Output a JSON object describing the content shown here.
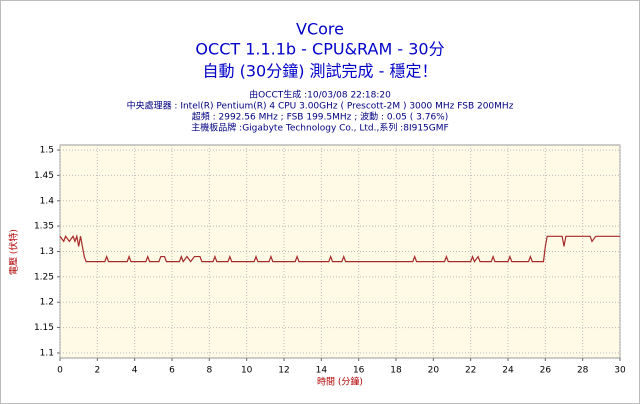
{
  "chart_data": {
    "type": "line",
    "title": "VCore",
    "subtitles": [
      "OCCT 1.1.1b - CPU&RAM - 30分",
      "自動 (30分鐘) 測試完成 - 穩定！"
    ],
    "info": [
      "由OCCT生成 :10/03/08 22:18:20",
      "中央處理器 : Intel(R) Pentium(R) 4 CPU 3.00GHz ( Prescott-2M ) 3000 MHz FSB 200MHz",
      "超頻 : 2992.56 MHz ; FSB 199.5MHz ; 波動 : 0.05 ( 3.76%)",
      "主機板品牌 :Gigabyte Technology Co., Ltd.,系列 :8I915GMF"
    ],
    "xlabel": "時間 (分鐘)",
    "ylabel": "電壓 (伏特)",
    "x": [
      0,
      0.2,
      0.3,
      0.5,
      0.7,
      0.8,
      0.9,
      1.0,
      1.1,
      1.3,
      1.4,
      2.4,
      2.5,
      2.6,
      3.6,
      3.7,
      3.8,
      4.6,
      4.7,
      4.8,
      5.3,
      5.4,
      5.6,
      5.7,
      6.4,
      6.5,
      6.6,
      6.8,
      7.0,
      7.2,
      7.5,
      7.6,
      8.2,
      8.3,
      8.4,
      9.0,
      9.1,
      9.2,
      10.4,
      10.5,
      10.6,
      11.2,
      11.3,
      11.4,
      12.6,
      12.7,
      12.8,
      14.4,
      14.5,
      14.6,
      15.1,
      15.2,
      15.3,
      18.9,
      19.0,
      19.1,
      20.6,
      20.7,
      20.8,
      22.0,
      22.1,
      22.2,
      22.4,
      22.5,
      23.1,
      23.2,
      23.3,
      24.0,
      24.1,
      24.2,
      25.1,
      25.2,
      25.3,
      25.9,
      26.0,
      26.1,
      26.9,
      27.0,
      27.1,
      28.4,
      28.5,
      28.7,
      30.0
    ],
    "values": [
      1.33,
      1.32,
      1.33,
      1.32,
      1.33,
      1.32,
      1.33,
      1.31,
      1.33,
      1.29,
      1.28,
      1.28,
      1.29,
      1.28,
      1.28,
      1.29,
      1.28,
      1.28,
      1.29,
      1.28,
      1.28,
      1.29,
      1.29,
      1.28,
      1.28,
      1.29,
      1.28,
      1.29,
      1.28,
      1.29,
      1.29,
      1.28,
      1.28,
      1.29,
      1.28,
      1.28,
      1.29,
      1.28,
      1.28,
      1.29,
      1.28,
      1.28,
      1.29,
      1.28,
      1.28,
      1.29,
      1.28,
      1.28,
      1.29,
      1.28,
      1.28,
      1.29,
      1.28,
      1.28,
      1.29,
      1.28,
      1.28,
      1.29,
      1.28,
      1.28,
      1.29,
      1.28,
      1.29,
      1.28,
      1.28,
      1.29,
      1.28,
      1.28,
      1.29,
      1.28,
      1.28,
      1.29,
      1.28,
      1.28,
      1.31,
      1.33,
      1.33,
      1.31,
      1.33,
      1.33,
      1.32,
      1.33,
      1.33
    ],
    "color": "#a52a2a",
    "xlim": [
      0,
      30
    ],
    "xticks": [
      0,
      2,
      4,
      6,
      8,
      10,
      12,
      14,
      16,
      18,
      20,
      22,
      24,
      26,
      28,
      30
    ],
    "ylim": [
      1.09,
      1.51
    ],
    "yticks": [
      1.1,
      1.15,
      1.2,
      1.25,
      1.3,
      1.35,
      1.4,
      1.45,
      1.5
    ],
    "grid": true
  }
}
